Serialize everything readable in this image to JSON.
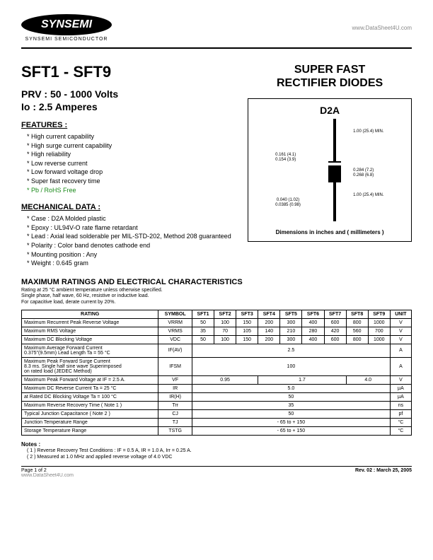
{
  "header": {
    "logo_main": "SYNSEMI",
    "logo_sub": "SYNSEMI SEMICONDUCTOR",
    "site": "www.DataSheet4U.com"
  },
  "title": {
    "main": "SFT1 - SFT9",
    "prv": "PRV : 50 - 1000 Volts",
    "io": "Io : 2.5 Amperes",
    "right1": "SUPER FAST",
    "right2": "RECTIFIER DIODES"
  },
  "features": {
    "heading": "FEATURES :",
    "items": [
      "High current capability",
      "High surge current capability",
      "High reliability",
      "Low reverse current",
      "Low forward voltage drop",
      "Super fast recovery time"
    ],
    "rohs": "Pb / RoHS Free"
  },
  "mechanical": {
    "heading": "MECHANICAL  DATA :",
    "items": [
      "Case : D2A  Molded plastic",
      "Epoxy : UL94V-O rate flame retardant",
      "Lead : Axial lead solderable per MIL-STD-202, Method 208 guaranteed",
      "Polarity : Color band denotes cathode end",
      "Mounting  position : Any",
      "Weight : 0.645 gram"
    ]
  },
  "package": {
    "label": "D2A",
    "caption": "Dimensions in inches and ( millimeters )",
    "dims": {
      "lead_top": "1.00 (25.4) MIN.",
      "body_dia": "0.161 (4.1)\n0.154 (3.9)",
      "body_len": "0.284 (7.2)\n0.268 (6.8)",
      "lead_bot": "1.00 (25.4) MIN.",
      "lead_dia": "0.040 (1.02)\n0.0385 (0.98)"
    }
  },
  "ratings": {
    "heading": "MAXIMUM RATINGS  AND ELECTRICAL  CHARACTERISTICS",
    "sub1": "Rating at  25 °C ambient temperature unless otherwise specified.",
    "sub2": "Single phase, half wave, 60 Hz, resistive or inductive load.",
    "sub3": "For capacitive load, derate current by 20%.",
    "columns": [
      "RATING",
      "SYMBOL",
      "SFT1",
      "SFT2",
      "SFT3",
      "SFT4",
      "SFT5",
      "SFT6",
      "SFT7",
      "SFT8",
      "SFT9",
      "UNIT"
    ],
    "rows": [
      {
        "label": "Maximum Recurrent Peak Reverse Voltage",
        "symbol": "VRRM",
        "cells": [
          "50",
          "100",
          "150",
          "200",
          "300",
          "400",
          "600",
          "800",
          "1000"
        ],
        "unit": "V"
      },
      {
        "label": "Maximum RMS Voltage",
        "symbol": "VRMS",
        "cells": [
          "35",
          "70",
          "105",
          "140",
          "210",
          "280",
          "420",
          "560",
          "700"
        ],
        "unit": "V"
      },
      {
        "label": "Maximum DC Blocking Voltage",
        "symbol": "VDC",
        "cells": [
          "50",
          "100",
          "150",
          "200",
          "300",
          "400",
          "600",
          "800",
          "1000"
        ],
        "unit": "V"
      },
      {
        "label": "Maximum Average Forward Current\n0.375\"(9.5mm) Lead Length        Ta = 55 °C",
        "symbol": "IF(AV)",
        "span": 9,
        "value": "2.5",
        "unit": "A"
      },
      {
        "label": "Maximum Peak Forward Surge Current\n8.3 ms. Single half sine wave Superimposed\non rated load (JEDEC Method)",
        "symbol": "IFSM",
        "span": 9,
        "value": "100",
        "unit": "A"
      },
      {
        "label": "Maximum Peak Forward Voltage at IF = 2.5 A.",
        "symbol": "VF",
        "groups": [
          {
            "span": 3,
            "value": "0.95"
          },
          {
            "span": 4,
            "value": "1.7"
          },
          {
            "span": 2,
            "value": "4.0"
          }
        ],
        "unit": "V"
      },
      {
        "label": "Maximum DC Reverse Current    Ta = 25 °C",
        "symbol": "IR",
        "span": 9,
        "value": "5.0",
        "unit": "μA"
      },
      {
        "label": "at Rated DC Blocking Voltage    Ta = 100 °C",
        "symbol": "IR(H)",
        "span": 9,
        "value": "50",
        "unit": "μA"
      },
      {
        "label": "Maximum Reverse Recovery Time ( Note 1 )",
        "symbol": "Trr",
        "span": 9,
        "value": "35",
        "unit": "ns"
      },
      {
        "label": "Typical Junction Capacitance  ( Note 2 )",
        "symbol": "CJ",
        "span": 9,
        "value": "50",
        "unit": "pf"
      },
      {
        "label": "Junction Temperature Range",
        "symbol": "TJ",
        "span": 9,
        "value": "- 65 to + 150",
        "unit": "°C"
      },
      {
        "label": "Storage Temperature Range",
        "symbol": "TSTG",
        "span": 9,
        "value": "- 65 to + 150",
        "unit": "°C"
      }
    ]
  },
  "notes": {
    "heading": "Notes :",
    "items": [
      "( 1 )  Reverse Recovery Test Conditions : IF = 0.5 A, IR = 1.0 A, Irr = 0.25 A.",
      "( 2 )  Measured at 1.0 MHz and applied reverse voltage of 4.0 VDC"
    ]
  },
  "footer": {
    "page": "Page 1 of 2",
    "watermark": "www.DataSheet4U.com",
    "rev": "Rev. 02 : March 25, 2005"
  }
}
